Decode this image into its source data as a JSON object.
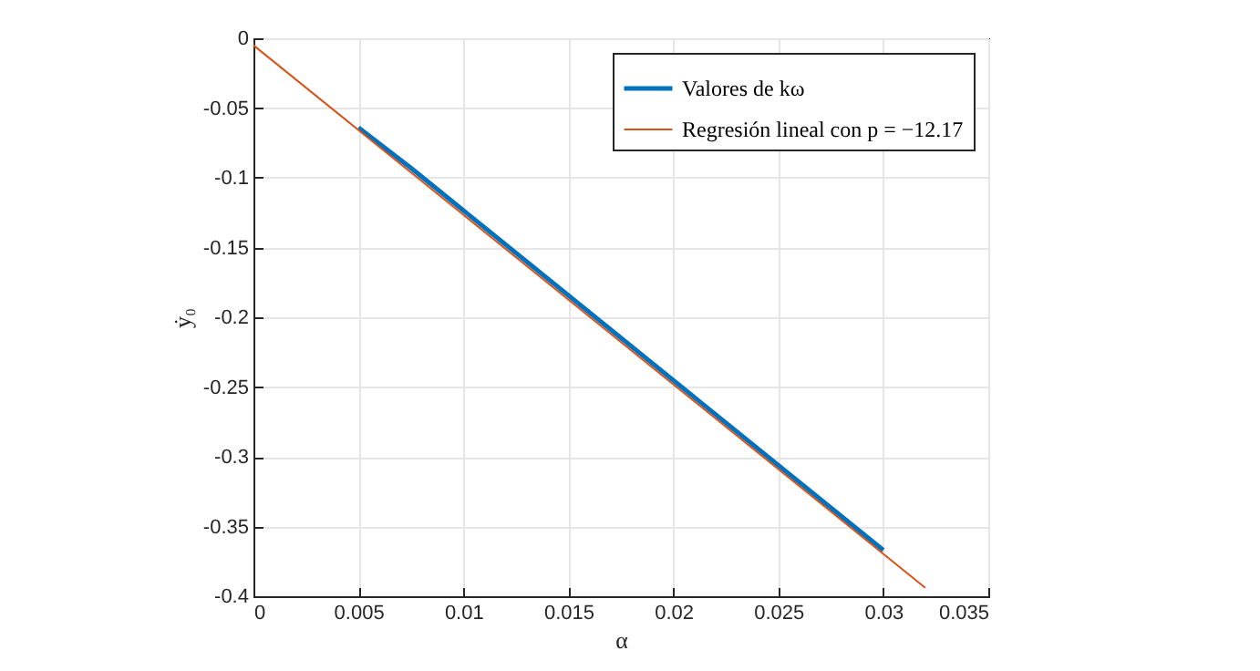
{
  "chart_data": {
    "type": "line",
    "xlabel": "α",
    "ylabel": "ẏ₀",
    "series": [
      {
        "name": "Valores de kω",
        "color": "#0072bd",
        "x": [
          0.005,
          0.0075,
          0.03
        ],
        "values": [
          -0.064,
          -0.093,
          -0.367
        ]
      },
      {
        "name": "Regresión lineal con p = −12.17",
        "color": "#d95319",
        "x": [
          0,
          0.032
        ],
        "values": [
          -0.005,
          -0.394
        ]
      }
    ],
    "xlim": [
      0,
      0.035
    ],
    "xticks": [
      0,
      0.005,
      0.01,
      0.015,
      0.02,
      0.025,
      0.03,
      0.035
    ],
    "ylim": [
      -0.4,
      0
    ],
    "yticks": [
      -0.4,
      -0.35,
      -0.3,
      -0.25,
      -0.2,
      -0.15,
      -0.1,
      -0.05,
      0
    ],
    "grid": true,
    "legend": "top right",
    "marker": "none",
    "line_style": "solid"
  }
}
